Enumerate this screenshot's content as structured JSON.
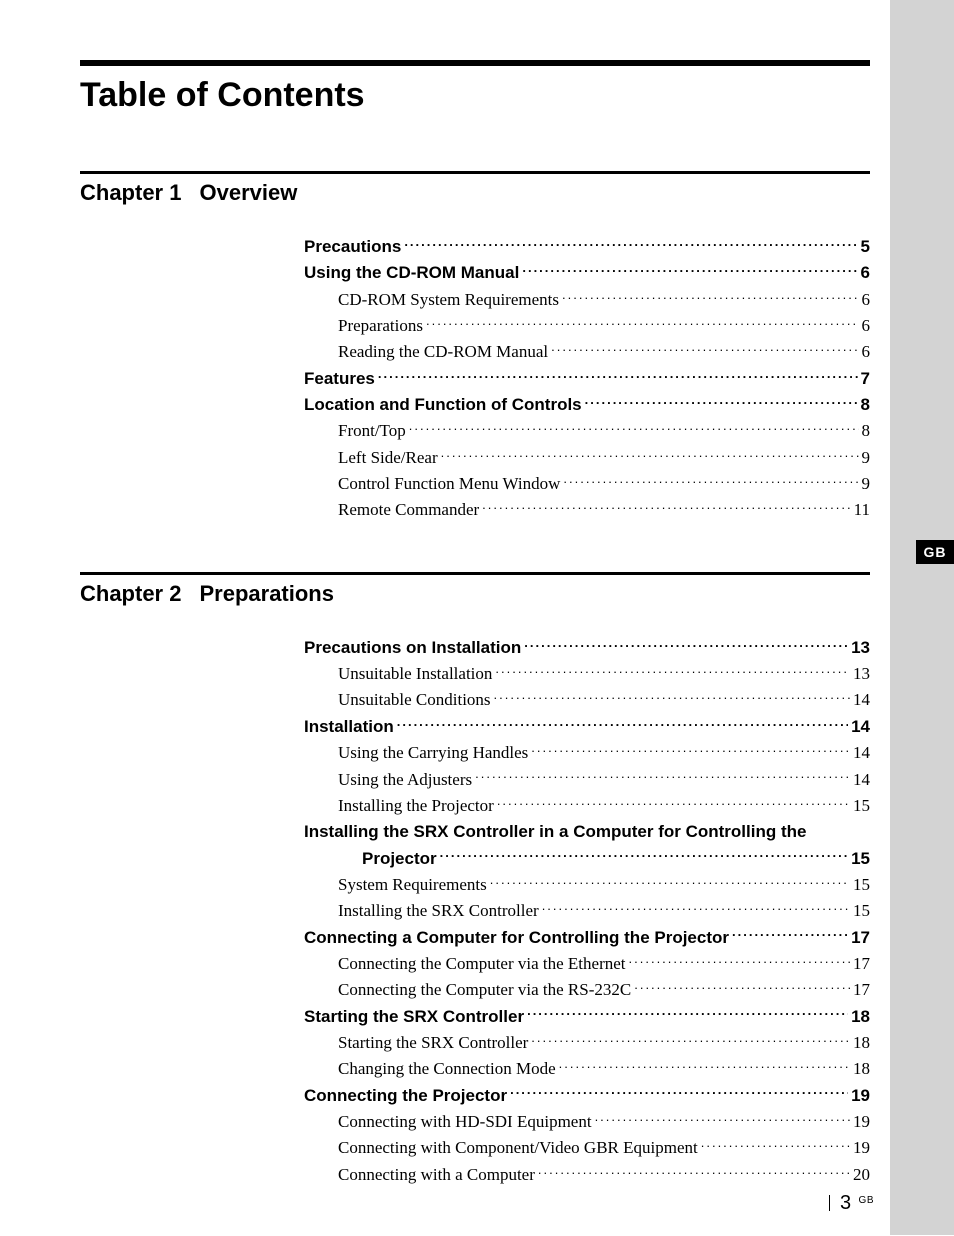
{
  "title": "Table of Contents",
  "side_tab": "GB",
  "footer": {
    "page": "3",
    "suffix": "GB"
  },
  "chapters": [
    {
      "num": "Chapter 1",
      "name": "Overview",
      "entries": [
        {
          "level": "section",
          "label": "Precautions",
          "page": "5"
        },
        {
          "level": "section",
          "label": "Using the CD-ROM Manual",
          "page": "6"
        },
        {
          "level": "sub",
          "label": "CD-ROM System Requirements",
          "page": "6"
        },
        {
          "level": "sub",
          "label": "Preparations",
          "page": "6"
        },
        {
          "level": "sub",
          "label": "Reading the CD-ROM Manual",
          "page": "6"
        },
        {
          "level": "section",
          "label": "Features",
          "page": "7"
        },
        {
          "level": "section",
          "label": "Location and Function of Controls",
          "page": "8"
        },
        {
          "level": "sub",
          "label": "Front/Top",
          "page": "8"
        },
        {
          "level": "sub",
          "label": "Left Side/Rear",
          "page": "9"
        },
        {
          "level": "sub",
          "label": "Control Function Menu Window",
          "page": "9"
        },
        {
          "level": "sub",
          "label": "Remote Commander",
          "page": "11"
        }
      ]
    },
    {
      "num": "Chapter 2",
      "name": "Preparations",
      "entries": [
        {
          "level": "section",
          "label": "Precautions on Installation",
          "page": "13"
        },
        {
          "level": "sub",
          "label": "Unsuitable Installation",
          "page": "13"
        },
        {
          "level": "sub",
          "label": "Unsuitable Conditions",
          "page": "14"
        },
        {
          "level": "section",
          "label": "Installation",
          "page": "14"
        },
        {
          "level": "sub",
          "label": "Using the Carrying Handles",
          "page": "14"
        },
        {
          "level": "sub",
          "label": "Using the Adjusters",
          "page": "14"
        },
        {
          "level": "sub",
          "label": "Installing the Projector",
          "page": "15"
        },
        {
          "level": "section-wrap",
          "line1": "Installing the SRX Controller in a Computer for Controlling the",
          "line2": "Projector",
          "page": "15"
        },
        {
          "level": "sub",
          "label": "System Requirements",
          "page": "15"
        },
        {
          "level": "sub",
          "label": "Installing the SRX Controller",
          "page": "15"
        },
        {
          "level": "section",
          "label": "Connecting a Computer for Controlling the Projector",
          "page": "17"
        },
        {
          "level": "sub",
          "label": "Connecting the Computer via the Ethernet",
          "page": "17"
        },
        {
          "level": "sub",
          "label": "Connecting the Computer via the RS-232C",
          "page": "17"
        },
        {
          "level": "section",
          "label": "Starting the SRX Controller",
          "page": "18"
        },
        {
          "level": "sub",
          "label": "Starting the SRX Controller",
          "page": "18"
        },
        {
          "level": "sub",
          "label": "Changing the Connection Mode",
          "page": "18"
        },
        {
          "level": "section",
          "label": "Connecting the Projector",
          "page": "19"
        },
        {
          "level": "sub",
          "label": "Connecting with HD-SDI Equipment",
          "page": "19"
        },
        {
          "level": "sub",
          "label": "Connecting with Component/Video GBR Equipment",
          "page": "19"
        },
        {
          "level": "sub",
          "label": "Connecting with a Computer",
          "page": "20"
        }
      ]
    }
  ]
}
